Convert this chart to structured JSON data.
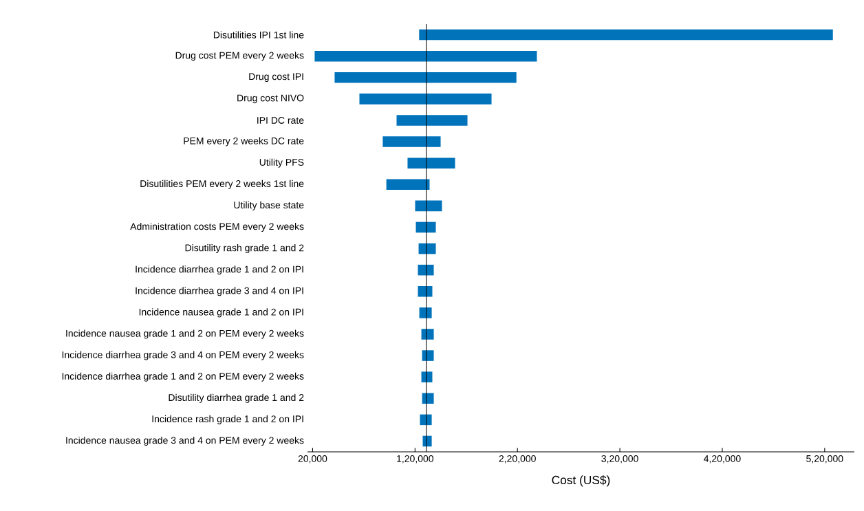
{
  "chart_data": {
    "type": "bar",
    "orientation": "horizontal",
    "xlabel": "Cost (US$)",
    "categories": [
      "Disutilities IPI 1st line",
      "Drug cost PEM every 2 weeks",
      "Drug cost IPI",
      "Drug cost NIVO",
      "IPI DC rate",
      "PEM every 2 weeks DC rate",
      "Utility PFS",
      "Disutilities PEM every 2 weeks 1st line",
      "Utility base state",
      "Administration costs PEM every 2 weeks",
      "Disutility rash grade 1 and 2",
      "Incidence diarrhea grade 1 and 2 on IPI",
      "Incidence diarrhea grade 3 and 4 on IPI",
      "Incidence nausea grade 1 and 2 on IPI",
      "Incidence nausea grade 1 and 2 on PEM every 2 weeks",
      "Incidence diarrhea grade 3 and 4 on PEM every 2 weeks",
      "Incidence diarrhea grade 1 and 2 on PEM every 2 weeks",
      "Disutility diarrhea grade 1 and 2",
      "Incidence rash grade 1 and 2 on IPI",
      "Incidence nausea grade 3 and 4 on PEM every 2 weeks"
    ],
    "base": [
      124000,
      22000,
      41500,
      65700,
      102000,
      88500,
      112700,
      92000,
      120100,
      120800,
      123500,
      122800,
      122800,
      124200,
      126200,
      126900,
      126200,
      126900,
      124800,
      127500
    ],
    "values": [
      404000,
      217000,
      177500,
      129000,
      69200,
      56500,
      46400,
      42200,
      26200,
      19500,
      16800,
      15500,
      14100,
      12100,
      12100,
      11400,
      10700,
      11400,
      11500,
      8800
    ],
    "color": "#0073bb",
    "xlim": [
      15000,
      549000
    ],
    "xticks": [
      {
        "value": 20000,
        "label": "20,000"
      },
      {
        "value": 120000,
        "label": "1,20,000"
      },
      {
        "value": 220000,
        "label": "2,20,000"
      },
      {
        "value": 320000,
        "label": "3,20,000"
      },
      {
        "value": 420000,
        "label": "4,20,000"
      },
      {
        "value": 520000,
        "label": "5,20,000"
      }
    ],
    "ref_lines": [
      {
        "axis": "x",
        "value": 131000,
        "color": "#000000"
      }
    ]
  }
}
